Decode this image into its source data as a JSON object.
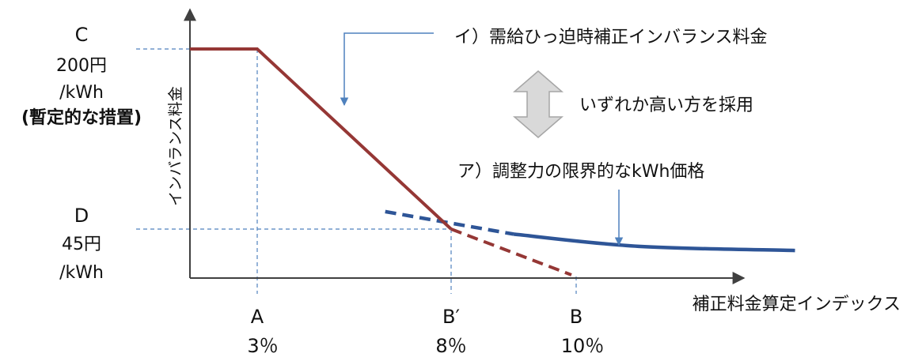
{
  "labels": {
    "c_letter": "C",
    "c_price": "200円",
    "c_unit": "/kWh",
    "c_note": "(暫定的な措置)",
    "d_letter": "D",
    "d_price": "45円",
    "d_unit": "/kWh",
    "y_axis": "インバランス料金",
    "x_axis": "補正料金算定インデックス",
    "tick_a": "A",
    "tick_a_pct": "3％",
    "tick_bp": "B′",
    "tick_bp_pct": "8％",
    "tick_b": "B",
    "tick_b_pct": "10％",
    "annotation_i": "イ）需給ひっ迫時補正インバランス料金",
    "annotation_choose": "いずれか高い方を採用",
    "annotation_a": "ア）調整力の限界的なkWh価格"
  },
  "colors": {
    "red_line": "#953735",
    "blue_curve": "#2E5597",
    "guide": "#4F81BD",
    "arrow_fill": "#D9D9D9",
    "arrow_stroke": "#A6A6A6",
    "axis": "#404040"
  },
  "chart_data": {
    "type": "line",
    "xlabel": "補正料金算定インデックス",
    "ylabel": "インバランス料金",
    "x_ticks": [
      {
        "name": "A",
        "value": 3
      },
      {
        "name": "B′",
        "value": 8
      },
      {
        "name": "B",
        "value": 10
      }
    ],
    "y_ticks": [
      {
        "name": "C",
        "value": 200
      },
      {
        "name": "D",
        "value": 45
      }
    ],
    "series": [
      {
        "name": "イ）需給ひっ迫時補正インバランス料金",
        "style": "solid",
        "x": [
          0,
          3,
          8,
          10
        ],
        "y": [
          200,
          200,
          45,
          0
        ]
      },
      {
        "name": "ア）調整力の限界的なkWh価格",
        "style": "dashed-then-solid",
        "x": [
          6.3,
          8,
          9,
          11,
          13.5
        ],
        "y": [
          60,
          45,
          40,
          28,
          24
        ]
      }
    ]
  }
}
